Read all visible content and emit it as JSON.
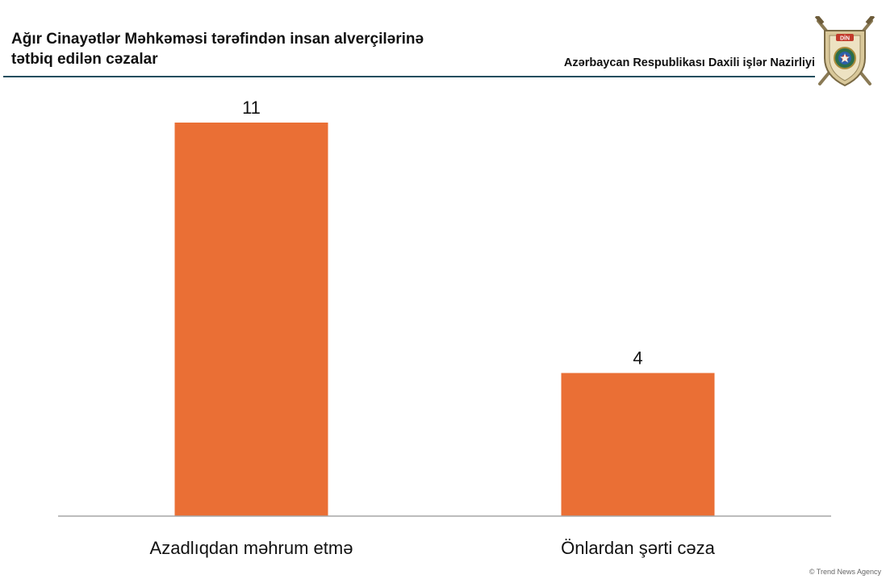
{
  "header": {
    "title_lines": [
      "Ağır Cinayətlər Məhkəməsi tərəfindən insan alverçilərinə",
      "tətbiq edilən cəzalar"
    ],
    "ministry": "Azərbaycan Respublikası Daxili işlər Nazirliyi",
    "emblem_icon": "police-shield-emblem-icon",
    "emblem_text": "DİN",
    "rule_color": "#1f4e5e"
  },
  "chart_data": {
    "type": "bar",
    "title": "Ağır Cinayətlər Məhkəməsi tərəfindən insan alverçilərinə tətbiq edilən cəzalar",
    "categories": [
      "Azadlıqdan məhrum etmə",
      "Önlardan şərti cəza"
    ],
    "values": [
      11,
      4
    ],
    "data_labels": [
      "11",
      "4"
    ],
    "ylim": [
      0,
      12
    ],
    "grid": false,
    "legend": "none",
    "bar_color": "#ea6f35",
    "axis_color": "#a6a6a6"
  },
  "footer": {
    "credit": "© Trend News Agency"
  }
}
